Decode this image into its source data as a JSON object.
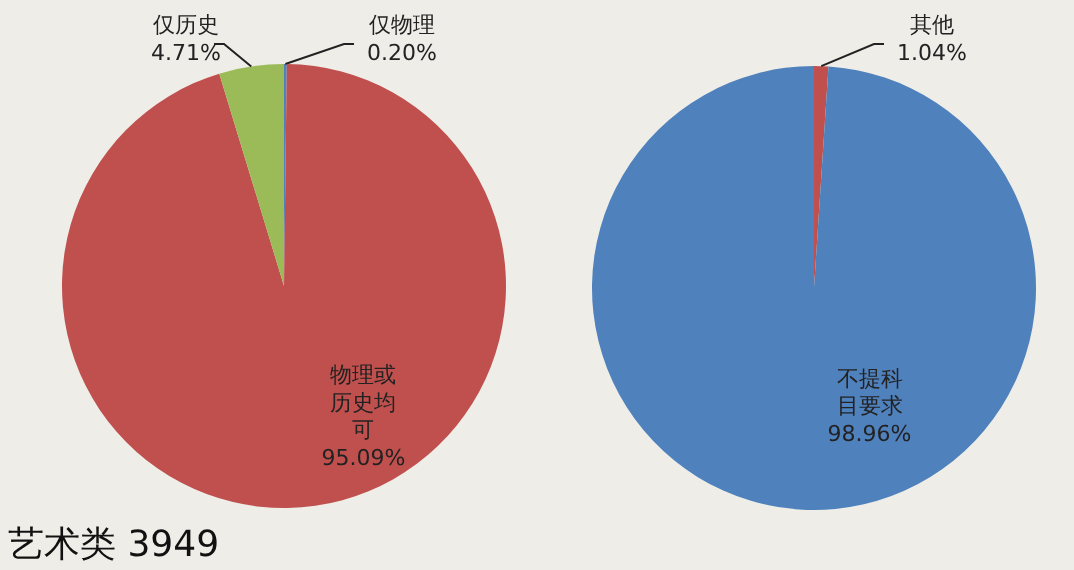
{
  "chart_data": [
    {
      "type": "pie",
      "title": "艺术类 3949",
      "categories": [
        "仅物理",
        "物理或历史均可",
        "仅历史"
      ],
      "values": [
        0.2,
        95.09,
        4.71
      ],
      "value_labels": [
        "0.20%",
        "95.09%",
        "4.71%"
      ],
      "colors": [
        "#4f81bd",
        "#c0504d",
        "#9bbb59"
      ]
    },
    {
      "type": "pie",
      "categories": [
        "其他",
        "不提科目要求"
      ],
      "values": [
        1.04,
        98.96
      ],
      "value_labels": [
        "1.04%",
        "98.96%"
      ],
      "colors": [
        "#c0504d",
        "#4f81bd"
      ]
    }
  ]
}
